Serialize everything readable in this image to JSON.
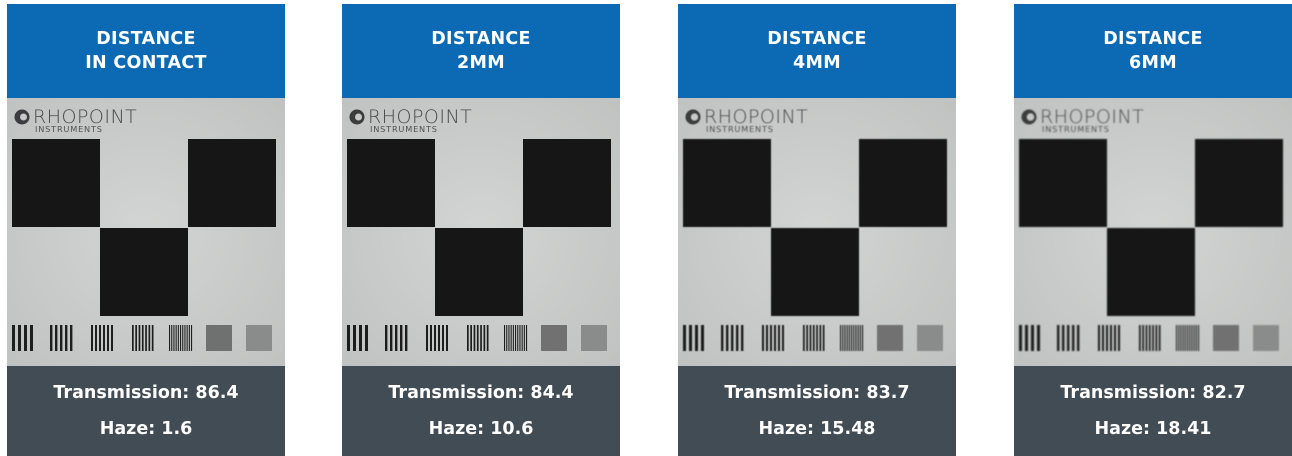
{
  "cards": [
    {
      "title_line1": "DISTANCE",
      "title_line2": "IN CONTACT",
      "transmission_label": "Transmission: 86.4",
      "haze_label": "Haze: 1.6",
      "logo_text": "RHOPOINT",
      "logo_subtext": "INSTRUMENTS",
      "blur": 0
    },
    {
      "title_line1": "DISTANCE",
      "title_line2": "2MM",
      "transmission_label": "Transmission: 84.4",
      "haze_label": "Haze: 10.6",
      "logo_text": "RHOPOINT",
      "logo_subtext": "INSTRUMENTS",
      "blur": 0.35
    },
    {
      "title_line1": "DISTANCE",
      "title_line2": "4MM",
      "transmission_label": "Transmission: 83.7",
      "haze_label": "Haze: 15.48",
      "logo_text": "RHOPOINT",
      "logo_subtext": "INSTRUMENTS",
      "blur": 0.55
    },
    {
      "title_line1": "DISTANCE",
      "title_line2": "6MM",
      "transmission_label": "Transmission: 82.7",
      "haze_label": "Haze: 18.41",
      "logo_text": "RHOPOINT",
      "logo_subtext": "INSTRUMENTS",
      "blur": 0.75
    }
  ],
  "colors": {
    "header_blue": "#0b6ab3",
    "footer_slate": "#424c55",
    "photo_background": "#c9cbca",
    "square_dark": "#161616"
  }
}
